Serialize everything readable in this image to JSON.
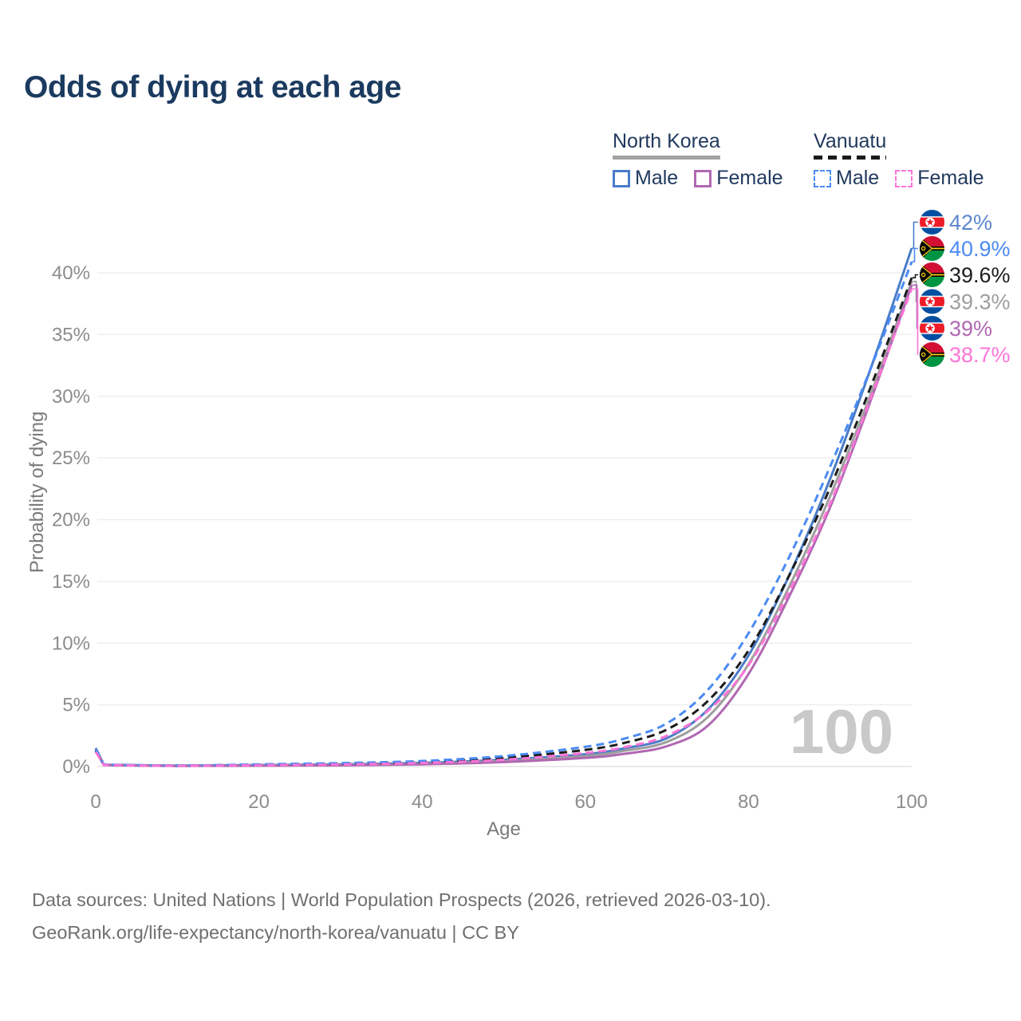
{
  "header": {
    "title": "Odds of dying at each age"
  },
  "legend": {
    "groups": [
      {
        "name": "North Korea",
        "line_style": "solid",
        "underline_color": "#a3a3a3",
        "items": [
          {
            "label": "Male",
            "color": "#4a7cc7"
          },
          {
            "label": "Female",
            "color": "#b068b2"
          }
        ]
      },
      {
        "name": "Vanuatu",
        "line_style": "dashed",
        "underline_color": "#1a1a1a",
        "items": [
          {
            "label": "Male",
            "color": "#4b8bf4"
          },
          {
            "label": "Female",
            "color": "#ff74d8"
          }
        ]
      }
    ]
  },
  "chart_data": {
    "type": "line",
    "title": "Odds of dying at each age",
    "xlabel": "Age",
    "ylabel": "Probability of dying",
    "xlim": [
      0,
      100
    ],
    "ylim": [
      0,
      42
    ],
    "xticks": [
      0,
      20,
      40,
      60,
      80,
      100
    ],
    "yticks": [
      0,
      5,
      10,
      15,
      20,
      25,
      30,
      35,
      40
    ],
    "ytick_suffix": "%",
    "grid": "horizontal",
    "age_watermark": "100",
    "x": [
      0,
      1,
      10,
      20,
      30,
      40,
      50,
      60,
      65,
      70,
      75,
      80,
      85,
      90,
      95,
      100
    ],
    "series": [
      {
        "name": "North Korea Male",
        "flag": "north-korea",
        "dash": false,
        "color": "#4a7cc7",
        "end_label": "42%",
        "end_label_color": "#5b87ce",
        "values": [
          1.5,
          0.15,
          0.08,
          0.12,
          0.18,
          0.3,
          0.55,
          1.0,
          1.5,
          2.3,
          4.6,
          9.0,
          15.5,
          23.3,
          32.3,
          42.0
        ]
      },
      {
        "name": "Vanuatu Male",
        "flag": "vanuatu",
        "dash": true,
        "color": "#4b8bf4",
        "end_label": "40.9%",
        "end_label_color": "#4b8bf4",
        "values": [
          1.4,
          0.15,
          0.08,
          0.18,
          0.28,
          0.45,
          0.85,
          1.6,
          2.3,
          3.5,
          6.2,
          10.8,
          17.0,
          24.3,
          32.3,
          40.9
        ]
      },
      {
        "name": "Vanuatu Combined",
        "flag": "vanuatu",
        "dash": true,
        "color": "#1c1c1c",
        "end_label": "39.6%",
        "end_label_color": "#1c1c1c",
        "values": [
          1.3,
          0.13,
          0.07,
          0.14,
          0.22,
          0.36,
          0.7,
          1.35,
          1.95,
          3.0,
          5.3,
          9.4,
          15.5,
          22.6,
          30.8,
          39.6
        ]
      },
      {
        "name": "North Korea Combined",
        "flag": "north-korea",
        "dash": false,
        "color": "#9e9e9e",
        "end_label": "39.3%",
        "end_label_color": "#9e9e9e",
        "values": [
          1.4,
          0.13,
          0.06,
          0.09,
          0.13,
          0.22,
          0.45,
          0.85,
          1.3,
          2.0,
          4.0,
          8.3,
          14.6,
          21.9,
          30.2,
          39.3
        ]
      },
      {
        "name": "North Korea Female",
        "flag": "north-korea",
        "dash": false,
        "color": "#b068b2",
        "end_label": "39%",
        "end_label_color": "#b068b2",
        "values": [
          1.3,
          0.12,
          0.05,
          0.07,
          0.1,
          0.18,
          0.36,
          0.7,
          1.05,
          1.65,
          3.3,
          7.5,
          13.8,
          21.0,
          29.7,
          39.0
        ]
      },
      {
        "name": "Vanuatu Female",
        "flag": "vanuatu",
        "dash": true,
        "color": "#ff74d8",
        "end_label": "38.7%",
        "end_label_color": "#ff74d8",
        "values": [
          1.2,
          0.12,
          0.06,
          0.11,
          0.17,
          0.29,
          0.55,
          1.1,
          1.6,
          2.5,
          4.5,
          8.2,
          14.2,
          21.3,
          29.9,
          38.7
        ]
      }
    ]
  },
  "footer": {
    "line1": "Data sources: United Nations | World Population Prospects (2026, retrieved 2026-03-10).",
    "line2": "GeoRank.org/life-expectancy/north-korea/vanuatu | CC BY"
  }
}
